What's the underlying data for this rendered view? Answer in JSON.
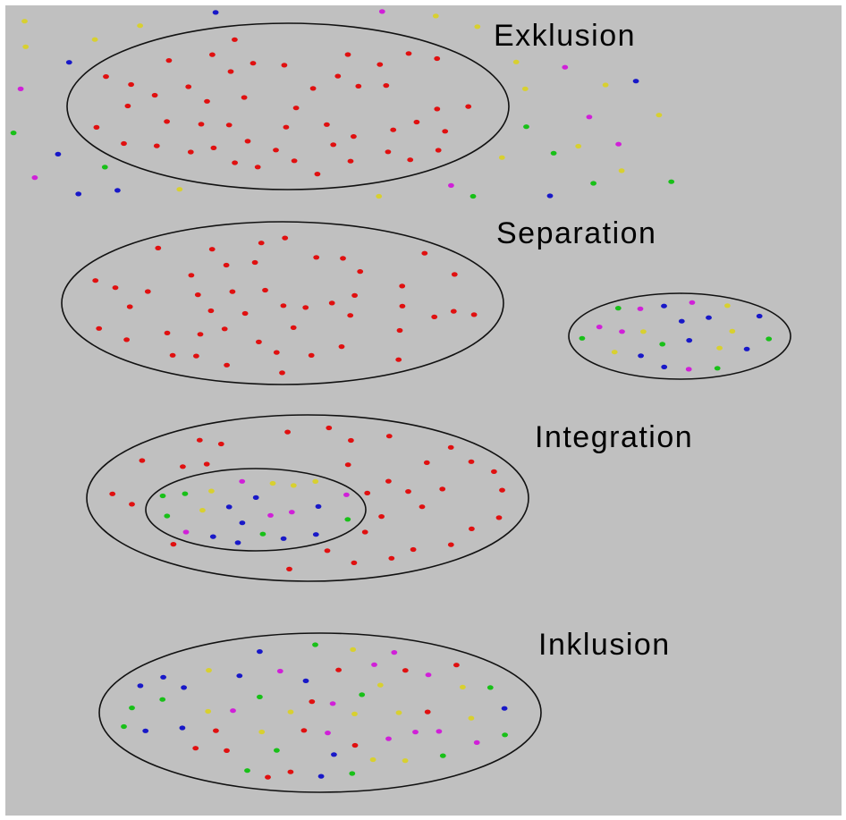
{
  "colors": {
    "background": "#c0c0c0",
    "frame": "#ffffff",
    "outline": "#111111",
    "text": "#000000",
    "red": "#e01010",
    "yellow": "#d8d030",
    "green": "#18c018",
    "blue": "#1818c8",
    "magenta": "#d020d8"
  },
  "panels": [
    {
      "id": "exklusion",
      "label": "Exklusion"
    },
    {
      "id": "separation",
      "label": "Separation"
    },
    {
      "id": "integration",
      "label": "Integration"
    },
    {
      "id": "inklusion",
      "label": "Inklusion"
    }
  ],
  "dot_groups": {
    "exklusion_red_inside": 49,
    "exklusion_others_outside": 36,
    "separation_red": 47,
    "separation_mixed": 26,
    "integration_red": 33,
    "integration_mixed": 27,
    "inklusion_mixed": 58
  }
}
